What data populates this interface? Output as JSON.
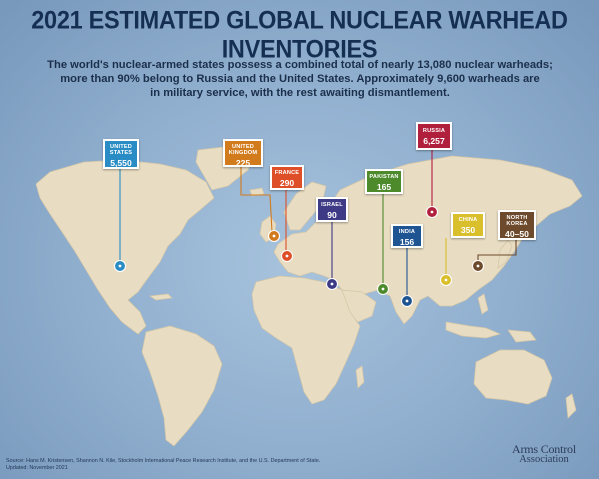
{
  "header": {
    "title": "2021 ESTIMATED GLOBAL NUCLEAR WARHEAD INVENTORIES",
    "subtitle_lines": [
      "The world's nuclear-armed states possess a combined total of nearly 13,080 nuclear warheads;",
      "more than 90% belong to Russia and the United States. Approximately 9,600 warheads are",
      "in military service, with the rest awaiting dismantlement."
    ]
  },
  "markers": [
    {
      "key": "us",
      "name_lines": [
        "UNITED",
        "STATES"
      ],
      "value": "5,550",
      "color": "#2a8cc4"
    },
    {
      "key": "uk",
      "name_lines": [
        "UNITED",
        "KINGDOM"
      ],
      "value": "225",
      "color": "#d17b1d"
    },
    {
      "key": "france",
      "name_lines": [
        "FRANCE"
      ],
      "value": "290",
      "color": "#de4f27"
    },
    {
      "key": "israel",
      "name_lines": [
        "ISRAEL"
      ],
      "value": "90",
      "color": "#3f3a86"
    },
    {
      "key": "pakistan",
      "name_lines": [
        "PAKISTAN"
      ],
      "value": "165",
      "color": "#4d8a2c"
    },
    {
      "key": "india",
      "name_lines": [
        "INDIA"
      ],
      "value": "156",
      "color": "#1f5492"
    },
    {
      "key": "russia",
      "name_lines": [
        "RUSSIA"
      ],
      "value": "6,257",
      "color": "#b01f3c"
    },
    {
      "key": "china",
      "name_lines": [
        "CHINA"
      ],
      "value": "350",
      "color": "#d9bf2c"
    },
    {
      "key": "northkorea",
      "name_lines": [
        "NORTH",
        "KOREA"
      ],
      "value": "40–50",
      "color": "#6e4a2c"
    }
  ],
  "footer": {
    "source_lines": [
      "Source: Hans M. Kristensen, Shannon N. Kile, Stockholm International Peace Research Institute, and the U.S. Department of State.",
      "Updated: November 2021"
    ],
    "logo_line1": "Arms Control",
    "logo_line2": "Association"
  },
  "colors": {
    "ocean": "#9dbbd7",
    "land": "#e7dcc4",
    "title": "#152f52"
  },
  "icons": [
    "map-pin-icon",
    "world-map-icon"
  ]
}
